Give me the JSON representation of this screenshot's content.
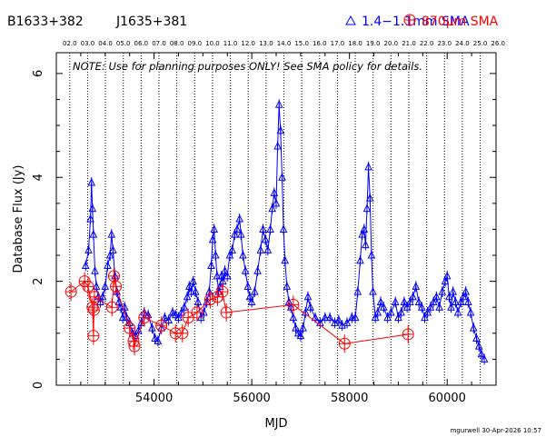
{
  "header": {
    "source_name": "B1633+382",
    "alt_name": "J1635+381",
    "legend_sma_mm": "1.4−1.1mm SMA",
    "legend_sma_870": "870μm SMA"
  },
  "note": "NOTE: Use for planning purposes ONLY!  See SMA policy for details.",
  "footer": {
    "credit": "mgurwell 30-Apr-2026 10:57"
  },
  "chart_data": {
    "type": "scatter",
    "xlabel": "MJD",
    "ylabel": "Database Flux (Jy)",
    "xlim": [
      52000,
      61000
    ],
    "ylim": [
      0,
      6.4
    ],
    "x_ticks": [
      54000,
      56000,
      58000,
      60000
    ],
    "y_ticks": [
      0,
      2,
      4,
      6
    ],
    "top_axis": {
      "labels": [
        "02.0",
        "03.0",
        "04.0",
        "05.0",
        "06.0",
        "07.0",
        "08.0",
        "09.0",
        "10.0",
        "11.0",
        "12.0",
        "13.0",
        "14.0",
        "15.0",
        "16.0",
        "17.0",
        "18.0",
        "19.0",
        "20.0",
        "21.0",
        "22.0",
        "23.0",
        "24.0",
        "25.0",
        "26.0"
      ],
      "year_start_mjd": [
        52275,
        52640,
        53005,
        53371,
        53736,
        54101,
        54466,
        54832,
        55197,
        55562,
        55927,
        56293,
        56658,
        57023,
        57388,
        57754,
        58119,
        58484,
        58849,
        59215,
        59580,
        59945,
        60310,
        60676,
        61041
      ]
    },
    "series": [
      {
        "name": "1.4−1.1mm SMA",
        "color": "#0000ff",
        "marker": "triangle",
        "connected": true,
        "points": [
          [
            52600,
            2.3
          ],
          [
            52660,
            2.6
          ],
          [
            52700,
            3.2
          ],
          [
            52720,
            3.9
          ],
          [
            52740,
            3.4
          ],
          [
            52760,
            2.9
          ],
          [
            52790,
            2.2
          ],
          [
            52820,
            1.9
          ],
          [
            52860,
            1.7
          ],
          [
            52900,
            1.6
          ],
          [
            52950,
            1.7
          ],
          [
            53000,
            1.9
          ],
          [
            53050,
            2.3
          ],
          [
            53100,
            2.5
          ],
          [
            53130,
            2.9
          ],
          [
            53160,
            2.6
          ],
          [
            53200,
            2.1
          ],
          [
            53240,
            1.8
          ],
          [
            53280,
            1.6
          ],
          [
            53320,
            1.5
          ],
          [
            53360,
            1.3
          ],
          [
            53400,
            1.5
          ],
          [
            53440,
            1.3
          ],
          [
            53500,
            1.2
          ],
          [
            53560,
            1.0
          ],
          [
            53620,
            0.95
          ],
          [
            53680,
            1.05
          ],
          [
            53740,
            1.2
          ],
          [
            53800,
            1.4
          ],
          [
            53880,
            1.35
          ],
          [
            53960,
            1.1
          ],
          [
            54020,
            0.9
          ],
          [
            54080,
            0.85
          ],
          [
            54150,
            1.1
          ],
          [
            54220,
            1.3
          ],
          [
            54300,
            1.25
          ],
          [
            54380,
            1.4
          ],
          [
            54440,
            1.35
          ],
          [
            54500,
            1.3
          ],
          [
            54560,
            1.4
          ],
          [
            54620,
            1.5
          ],
          [
            54680,
            1.7
          ],
          [
            54720,
            1.9
          ],
          [
            54760,
            1.8
          ],
          [
            54800,
            2.0
          ],
          [
            54850,
            1.8
          ],
          [
            54900,
            1.6
          ],
          [
            54960,
            1.3
          ],
          [
            55020,
            1.4
          ],
          [
            55080,
            1.6
          ],
          [
            55130,
            1.8
          ],
          [
            55170,
            2.3
          ],
          [
            55200,
            2.8
          ],
          [
            55230,
            3.0
          ],
          [
            55260,
            2.5
          ],
          [
            55290,
            2.1
          ],
          [
            55320,
            1.8
          ],
          [
            55350,
            1.9
          ],
          [
            55380,
            2.1
          ],
          [
            55410,
            2.0
          ],
          [
            55450,
            2.2
          ],
          [
            55500,
            2.1
          ],
          [
            55550,
            2.5
          ],
          [
            55600,
            2.6
          ],
          [
            55650,
            2.9
          ],
          [
            55700,
            3.0
          ],
          [
            55750,
            3.2
          ],
          [
            55780,
            2.9
          ],
          [
            55820,
            2.5
          ],
          [
            55870,
            2.2
          ],
          [
            55920,
            1.9
          ],
          [
            55960,
            1.7
          ],
          [
            56000,
            1.6
          ],
          [
            56060,
            1.8
          ],
          [
            56120,
            2.2
          ],
          [
            56180,
            2.6
          ],
          [
            56230,
            3.0
          ],
          [
            56280,
            2.8
          ],
          [
            56330,
            2.6
          ],
          [
            56380,
            3.0
          ],
          [
            56420,
            3.4
          ],
          [
            56460,
            3.7
          ],
          [
            56500,
            3.5
          ],
          [
            56530,
            4.6
          ],
          [
            56560,
            5.4
          ],
          [
            56590,
            4.9
          ],
          [
            56620,
            4.0
          ],
          [
            56650,
            3.0
          ],
          [
            56680,
            2.4
          ],
          [
            56720,
            1.9
          ],
          [
            56760,
            1.6
          ],
          [
            56800,
            1.5
          ],
          [
            56850,
            1.3
          ],
          [
            56900,
            1.1
          ],
          [
            56950,
            1.0
          ],
          [
            57000,
            0.95
          ],
          [
            57050,
            1.1
          ],
          [
            57100,
            1.4
          ],
          [
            57150,
            1.7
          ],
          [
            57200,
            1.5
          ],
          [
            57300,
            1.3
          ],
          [
            57400,
            1.2
          ],
          [
            57500,
            1.3
          ],
          [
            57600,
            1.3
          ],
          [
            57700,
            1.2
          ],
          [
            57780,
            1.25
          ],
          [
            57850,
            1.15
          ],
          [
            57950,
            1.2
          ],
          [
            58050,
            1.3
          ],
          [
            58120,
            1.3
          ],
          [
            58170,
            1.8
          ],
          [
            58220,
            2.4
          ],
          [
            58260,
            2.9
          ],
          [
            58300,
            3.0
          ],
          [
            58330,
            2.7
          ],
          [
            58360,
            3.4
          ],
          [
            58390,
            4.2
          ],
          [
            58420,
            3.6
          ],
          [
            58450,
            2.5
          ],
          [
            58480,
            1.8
          ],
          [
            58530,
            1.3
          ],
          [
            58580,
            1.4
          ],
          [
            58640,
            1.6
          ],
          [
            58700,
            1.5
          ],
          [
            58780,
            1.3
          ],
          [
            58850,
            1.4
          ],
          [
            58940,
            1.6
          ],
          [
            59000,
            1.3
          ],
          [
            59060,
            1.4
          ],
          [
            59120,
            1.6
          ],
          [
            59180,
            1.5
          ],
          [
            59240,
            1.6
          ],
          [
            59300,
            1.7
          ],
          [
            59360,
            1.9
          ],
          [
            59420,
            1.6
          ],
          [
            59480,
            1.5
          ],
          [
            59540,
            1.3
          ],
          [
            59600,
            1.4
          ],
          [
            59660,
            1.5
          ],
          [
            59720,
            1.6
          ],
          [
            59780,
            1.7
          ],
          [
            59840,
            1.5
          ],
          [
            59900,
            1.8
          ],
          [
            59960,
            2.0
          ],
          [
            60000,
            2.1
          ],
          [
            60040,
            1.7
          ],
          [
            60080,
            1.5
          ],
          [
            60120,
            1.8
          ],
          [
            60170,
            1.6
          ],
          [
            60220,
            1.4
          ],
          [
            60280,
            1.6
          ],
          [
            60330,
            1.7
          ],
          [
            60380,
            1.8
          ],
          [
            60430,
            1.6
          ],
          [
            60480,
            1.4
          ],
          [
            60540,
            1.1
          ],
          [
            60600,
            0.9
          ],
          [
            60650,
            0.75
          ],
          [
            60700,
            0.6
          ],
          [
            60760,
            0.5
          ]
        ]
      },
      {
        "name": "870μm SMA",
        "color": "#ff0000",
        "marker": "circle-cross",
        "connected": true,
        "points": [
          [
            52300,
            1.8
          ],
          [
            52580,
            2.0
          ],
          [
            52650,
            1.9
          ],
          [
            52740,
            1.5
          ],
          [
            52770,
            1.45
          ],
          [
            52780,
            1.7
          ],
          [
            52760,
            0.95
          ],
          [
            53140,
            1.5
          ],
          [
            53180,
            2.1
          ],
          [
            53220,
            1.9
          ],
          [
            53500,
            1.1
          ],
          [
            53580,
            0.85
          ],
          [
            53600,
            0.75
          ],
          [
            53800,
            1.3
          ],
          [
            54150,
            1.15
          ],
          [
            54440,
            1.0
          ],
          [
            54580,
            1.0
          ],
          [
            54700,
            1.3
          ],
          [
            54880,
            1.4
          ],
          [
            55150,
            1.65
          ],
          [
            55300,
            1.7
          ],
          [
            55400,
            1.8
          ],
          [
            55480,
            1.4
          ],
          [
            56850,
            1.55
          ],
          [
            57900,
            0.8
          ],
          [
            59200,
            0.98
          ]
        ]
      }
    ]
  }
}
